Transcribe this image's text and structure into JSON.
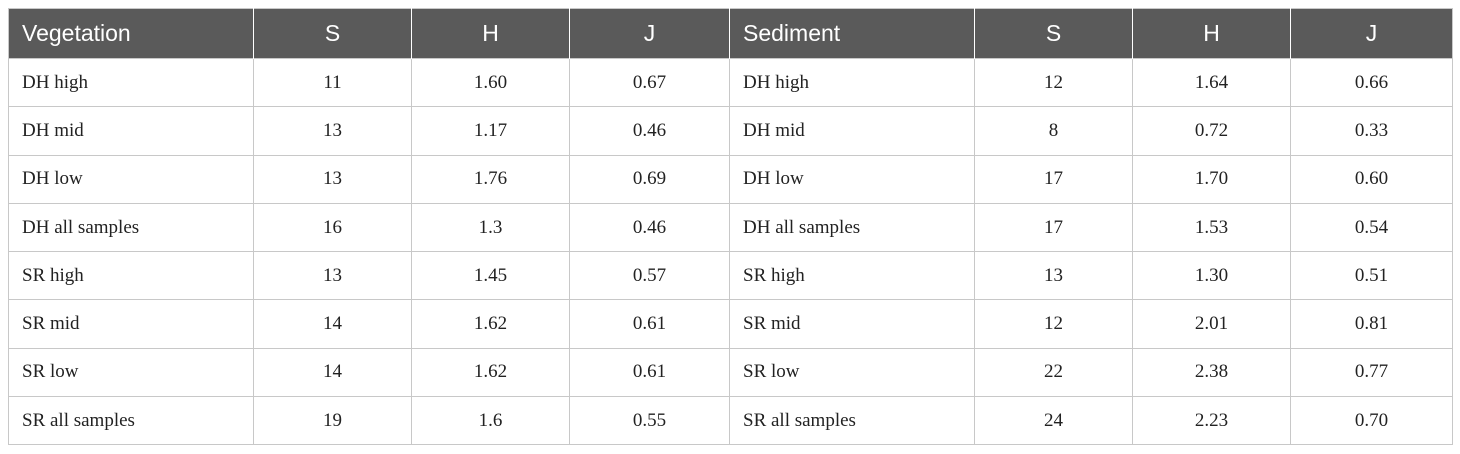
{
  "table": {
    "headers": [
      "Vegetation",
      "S",
      "H",
      "J",
      "Sediment",
      "S",
      "H",
      "J"
    ],
    "rows": [
      [
        "DH high",
        "11",
        "1.60",
        "0.67",
        "DH high",
        "12",
        "1.64",
        "0.66"
      ],
      [
        "DH mid",
        "13",
        "1.17",
        "0.46",
        "DH mid",
        "8",
        "0.72",
        "0.33"
      ],
      [
        "DH low",
        "13",
        "1.76",
        "0.69",
        "DH low",
        "17",
        "1.70",
        "0.60"
      ],
      [
        "DH all samples",
        "16",
        "1.3",
        "0.46",
        "DH all samples",
        "17",
        "1.53",
        "0.54"
      ],
      [
        "SR high",
        "13",
        "1.45",
        "0.57",
        "SR high",
        "13",
        "1.30",
        "0.51"
      ],
      [
        "SR mid",
        "14",
        "1.62",
        "0.61",
        "SR mid",
        "12",
        "2.01",
        "0.81"
      ],
      [
        "SR low",
        "14",
        "1.62",
        "0.61",
        "SR low",
        "22",
        "2.38",
        "0.77"
      ],
      [
        "SR all samples",
        "19",
        "1.6",
        "0.55",
        "SR all samples",
        "24",
        "2.23",
        "0.70"
      ]
    ]
  },
  "colors": {
    "header_bg": "#5a5a5a",
    "header_text": "#ffffff",
    "border": "#c8c8c8"
  }
}
